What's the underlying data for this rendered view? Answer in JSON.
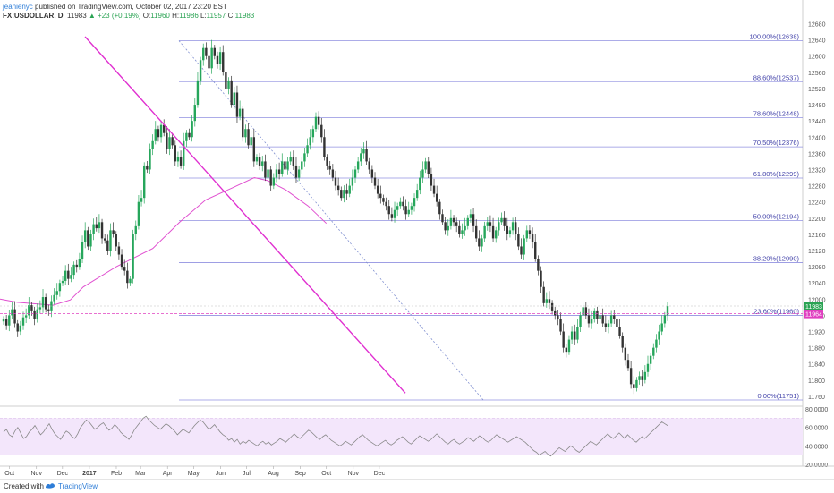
{
  "header": {
    "author": "jeanienyc",
    "publish_text": "published on TradingView.com, October 02, 2017 23:20 EST",
    "symbol": "FX:USDOLLAR, D",
    "last": "11983",
    "change": "▲ +23 (+0.19%)",
    "o_label": "O:",
    "o": "11960",
    "h_label": "H:",
    "h": "11986",
    "l_label": "L:",
    "l": "11957",
    "c_label": "C:",
    "c": "11983"
  },
  "footer": {
    "created_with": "Created with",
    "brand": "TradingView"
  },
  "colors": {
    "candle_up": "#26a65b",
    "candle_down": "#333333",
    "trendline": "#e030d0",
    "moving_average": "#e050d0",
    "fib_line": "#9090e0",
    "rsi_line": "#888888",
    "rsi_band": "#f3e6fb",
    "last_price_badge": "#2aa353"
  },
  "chart_data": [
    {
      "type": "candlestick",
      "title": "",
      "x_ticks": [
        "Oct",
        "Nov",
        "Dec",
        "2017",
        "Feb",
        "Mar",
        "Apr",
        "May",
        "Jun",
        "Jul",
        "Aug",
        "Sep",
        "Oct",
        "Nov",
        "Dec"
      ],
      "y_ticks": [
        "12680",
        "12640",
        "12600",
        "12560",
        "12520",
        "12480",
        "12440",
        "12400",
        "12360",
        "12320",
        "12280",
        "12240",
        "12200",
        "12160",
        "12120",
        "12080",
        "12040",
        "12000",
        "11960",
        "11920",
        "11880",
        "11840",
        "11800",
        "11760"
      ],
      "ylim": [
        11740,
        12690
      ],
      "closes": [
        11950,
        11935,
        11960,
        11975,
        11940,
        11920,
        11935,
        11955,
        11960,
        11985,
        11970,
        11950,
        11975,
        11980,
        12005,
        11975,
        11970,
        11995,
        12010,
        12020,
        12040,
        12045,
        12070,
        12050,
        12060,
        12085,
        12080,
        12100,
        12140,
        12170,
        12130,
        12160,
        12185,
        12175,
        12190,
        12150,
        12145,
        12120,
        12170,
        12160,
        12130,
        12110,
        12080,
        12070,
        12040,
        12050,
        12160,
        12180,
        12240,
        12250,
        12330,
        12320,
        12370,
        12390,
        12420,
        12400,
        12430,
        12410,
        12370,
        12400,
        12380,
        12340,
        12350,
        12330,
        12390,
        12410,
        12400,
        12440,
        12480,
        12540,
        12590,
        12620,
        12600,
        12570,
        12620,
        12600,
        12580,
        12610,
        12560,
        12520,
        12540,
        12480,
        12510,
        12450,
        12470,
        12400,
        12420,
        12380,
        12400,
        12340,
        12350,
        12330,
        12340,
        12300,
        12320,
        12280,
        12300,
        12320,
        12310,
        12340,
        12320,
        12340,
        12350,
        12330,
        12300,
        12320,
        12340,
        12360,
        12380,
        12400,
        12420,
        12450,
        12430,
        12400,
        12350,
        12330,
        12320,
        12300,
        12280,
        12270,
        12250,
        12270,
        12260,
        12280,
        12300,
        12320,
        12340,
        12360,
        12370,
        12340,
        12320,
        12300,
        12280,
        12260,
        12250,
        12240,
        12230,
        12210,
        12200,
        12220,
        12230,
        12240,
        12230,
        12210,
        12220,
        12230,
        12250,
        12270,
        12300,
        12320,
        12340,
        12310,
        12280,
        12260,
        12240,
        12210,
        12190,
        12170,
        12180,
        12200,
        12190,
        12180,
        12160,
        12170,
        12180,
        12200,
        12210,
        12180,
        12150,
        12130,
        12150,
        12180,
        12190,
        12180,
        12150,
        12170,
        12190,
        12200,
        12180,
        12160,
        12170,
        12190,
        12160,
        12130,
        12110,
        12150,
        12170,
        12160,
        12140,
        12100,
        12070,
        12030,
        11990,
        12000,
        11990,
        11970,
        11960,
        11950,
        11920,
        11880,
        11870,
        11900,
        11920,
        11900,
        11930,
        11960,
        11980,
        11960,
        11940,
        11950,
        11970,
        11950,
        11960,
        11940,
        11930,
        11940,
        11960,
        11950,
        11930,
        11910,
        11880,
        11850,
        11830,
        11790,
        11780,
        11800,
        11810,
        11800,
        11820,
        11840,
        11860,
        11880,
        11900,
        11920,
        11940,
        11960,
        11983
      ],
      "fib_levels": [
        {
          "label": "100.00%(12638)",
          "value": 12638
        },
        {
          "label": "88.60%(12537)",
          "value": 12537
        },
        {
          "label": "78.60%(12448)",
          "value": 12448
        },
        {
          "label": "70.50%(12376)",
          "value": 12376
        },
        {
          "label": "61.80%(12299)",
          "value": 12299
        },
        {
          "label": "50.00%(12194)",
          "value": 12194
        },
        {
          "label": "38.20%(12090)",
          "value": 12090
        },
        {
          "label": "23.60%(11960)",
          "value": 11960
        },
        {
          "label": "0.00%(11751)",
          "value": 11751
        }
      ],
      "trendline": {
        "from": {
          "x": "2016-12-27",
          "y": 12648
        },
        "to": {
          "x": "2017-12-31",
          "y": 11768
        }
      },
      "moving_average": [
        {
          "x": "2016-09-20",
          "y": 12000
        },
        {
          "x": "2016-10-10",
          "y": 11992
        },
        {
          "x": "2016-11-20",
          "y": 11985
        },
        {
          "x": "2016-12-10",
          "y": 11998
        },
        {
          "x": "2016-12-25",
          "y": 12030
        },
        {
          "x": "2017-02-01",
          "y": 12080
        },
        {
          "x": "2017-03-15",
          "y": 12125
        },
        {
          "x": "2017-04-15",
          "y": 12190
        },
        {
          "x": "2017-05-15",
          "y": 12245
        },
        {
          "x": "2017-06-15",
          "y": 12275
        },
        {
          "x": "2017-07-10",
          "y": 12300
        },
        {
          "x": "2017-07-25",
          "y": 12293
        },
        {
          "x": "2017-08-15",
          "y": 12270
        },
        {
          "x": "2017-09-10",
          "y": 12230
        },
        {
          "x": "2017-10-01",
          "y": 12187
        }
      ],
      "last_price": {
        "label": "11983",
        "value": 11983
      },
      "alt_price": {
        "label": "11964",
        "value": 11964
      }
    },
    {
      "type": "line",
      "title": "",
      "y_ticks": [
        "80.0000",
        "60.0000",
        "40.0000",
        "20.0000"
      ],
      "ylim": [
        18,
        82
      ],
      "band": [
        30,
        70
      ],
      "values": [
        55,
        58,
        52,
        50,
        56,
        60,
        54,
        48,
        50,
        55,
        58,
        62,
        57,
        52,
        55,
        60,
        64,
        58,
        53,
        50,
        47,
        52,
        56,
        54,
        50,
        48,
        53,
        60,
        64,
        68,
        66,
        62,
        58,
        60,
        63,
        65,
        61,
        57,
        59,
        63,
        60,
        55,
        52,
        50,
        47,
        52,
        58,
        62,
        66,
        70,
        72,
        68,
        65,
        62,
        60,
        58,
        61,
        64,
        62,
        59,
        56,
        52,
        55,
        58,
        56,
        54,
        58,
        62,
        65,
        68,
        66,
        62,
        58,
        60,
        63,
        59,
        55,
        52,
        50,
        46,
        48,
        44,
        47,
        42,
        45,
        43,
        46,
        44,
        42,
        40,
        43,
        45,
        42,
        44,
        41,
        43,
        45,
        48,
        46,
        44,
        47,
        50,
        53,
        50,
        48,
        51,
        54,
        57,
        55,
        52,
        49,
        47,
        50,
        52,
        49,
        46,
        44,
        42,
        40,
        42,
        45,
        43,
        41,
        44,
        47,
        50,
        52,
        49,
        46,
        44,
        42,
        40,
        42,
        44,
        46,
        43,
        41,
        43,
        46,
        48,
        50,
        47,
        44,
        42,
        45,
        48,
        51,
        49,
        47,
        45,
        47,
        50,
        53,
        50,
        47,
        44,
        42,
        45,
        47,
        44,
        42,
        44,
        46,
        49,
        47,
        45,
        48,
        51,
        49,
        46,
        44,
        46,
        49,
        52,
        50,
        48,
        46,
        44,
        46,
        48,
        50,
        48,
        46,
        44,
        41,
        38,
        35,
        33,
        30,
        32,
        34,
        31,
        29,
        32,
        35,
        38,
        36,
        34,
        37,
        40,
        38,
        35,
        33,
        36,
        39,
        42,
        45,
        43,
        41,
        44,
        47,
        50,
        53,
        50,
        48,
        51,
        54,
        51,
        48,
        52,
        49,
        46,
        44,
        47,
        50,
        48,
        51,
        54,
        57,
        60,
        63,
        66,
        64,
        62
      ]
    }
  ]
}
